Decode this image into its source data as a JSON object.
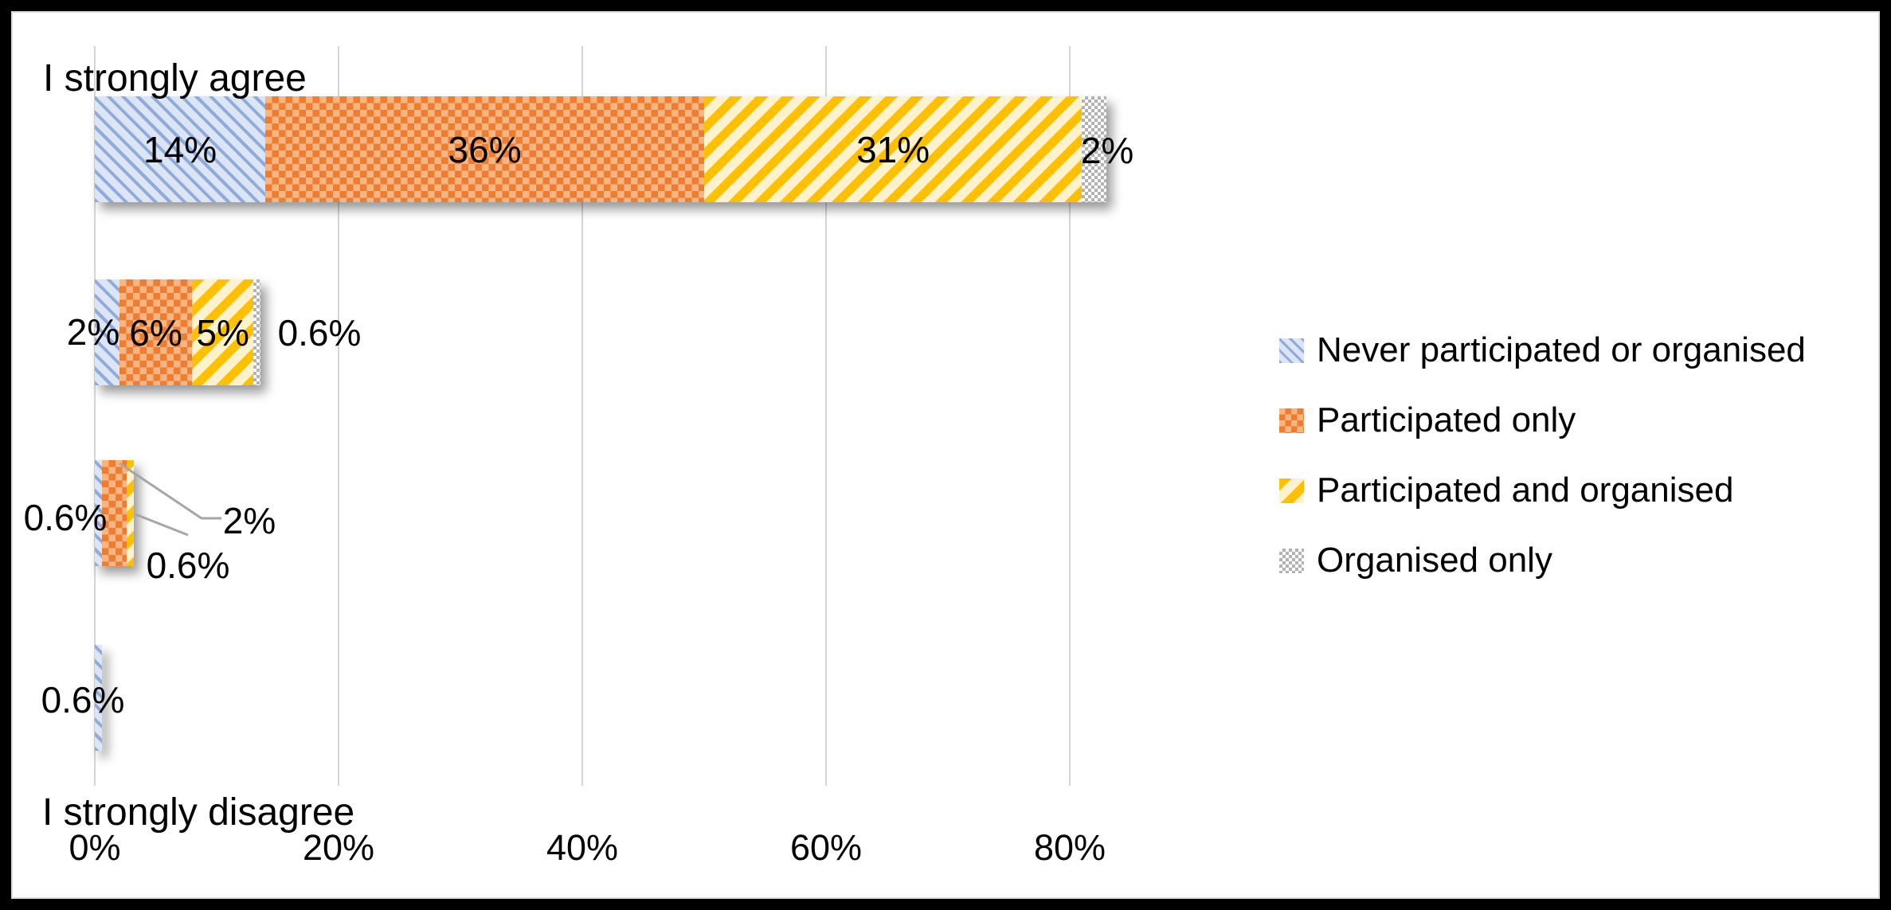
{
  "chart_data": {
    "type": "bar",
    "orientation": "horizontal",
    "stacked": true,
    "grid": true,
    "legend_position": "right",
    "axis_top_label": "I strongly agree",
    "axis_bottom_label": "I strongly disagree",
    "x_ticks": [
      "0%",
      "20%",
      "40%",
      "60%",
      "80%"
    ],
    "x_tick_values": [
      0,
      20,
      40,
      60,
      80
    ],
    "xlim": [
      0,
      100
    ],
    "rows": 4,
    "series": [
      {
        "name": "Never participated or organised",
        "pattern": "never",
        "values": [
          14,
          2,
          0.6,
          0.6
        ],
        "labels": [
          "14%",
          "2%",
          "0.6%",
          "0.6%"
        ]
      },
      {
        "name": "Participated only",
        "pattern": "participated",
        "values": [
          36,
          6,
          2,
          0
        ],
        "labels": [
          "36%",
          "6%",
          "2%",
          ""
        ]
      },
      {
        "name": "Participated and organised",
        "pattern": "partorg",
        "values": [
          31,
          5,
          0.6,
          0
        ],
        "labels": [
          "31%",
          "5%",
          "0.6%",
          ""
        ]
      },
      {
        "name": "Organised only",
        "pattern": "organised",
        "values": [
          2,
          0.6,
          0,
          0
        ],
        "labels": [
          "2%",
          "0.6%",
          "",
          ""
        ]
      }
    ],
    "colors": {
      "never_bg": "#dbe5f4",
      "never_fg": "#8faadc",
      "participated_bg": "#f6b583",
      "participated_fg": "#ed7d31",
      "partorg_bg": "#fff2cc",
      "partorg_fg": "#ffc000",
      "organised_bg": "#fbfbfb",
      "organised_fg": "#b3b3b3",
      "gridline": "#d5d5d5",
      "leader_line": "#a6a6a6",
      "text": "#000000",
      "frame": "#000000"
    }
  }
}
